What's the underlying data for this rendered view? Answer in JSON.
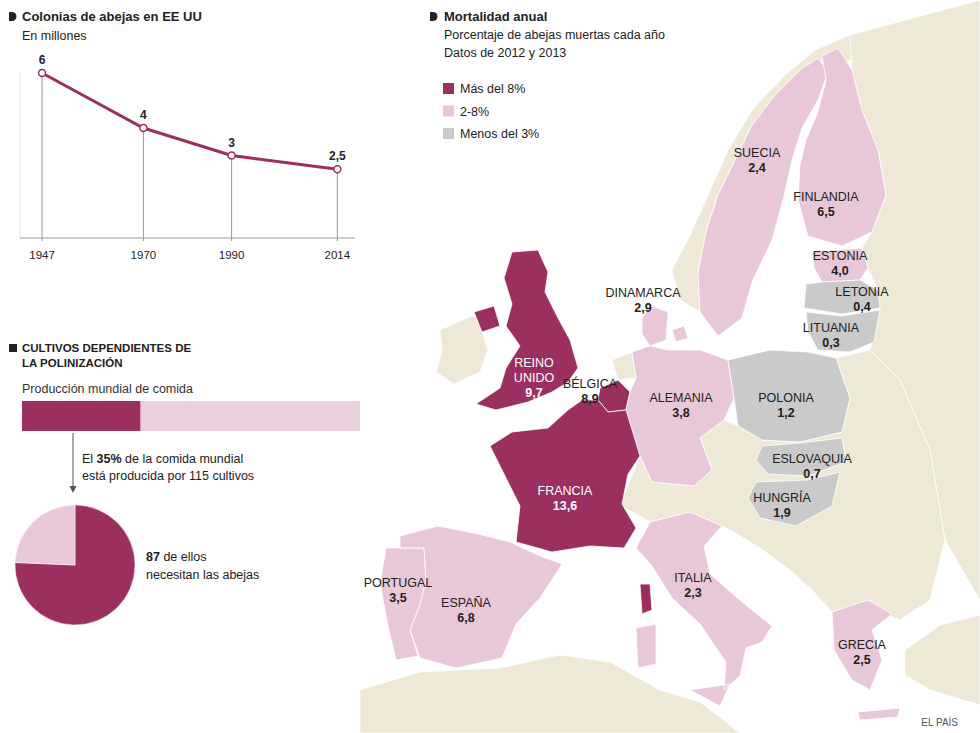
{
  "source": "EL PAÍS",
  "chart_data": [
    {
      "type": "line",
      "title": "Colonias de abejas en EE UU",
      "subtitle": "En millones",
      "x": [
        1947,
        1970,
        1990,
        2014
      ],
      "values": [
        6,
        4,
        3,
        2.5
      ],
      "value_labels": [
        "6",
        "4",
        "3",
        "2,5"
      ],
      "color": "#9b2f5f",
      "marker": "circle",
      "line_style": "solid",
      "xlim": [
        1942,
        2018
      ],
      "xticks": [
        1947,
        1970,
        1990,
        2014
      ],
      "ylim": [
        0,
        6
      ],
      "yticks": [],
      "grid": false,
      "data_labels": true,
      "tick_labels": "x"
    },
    {
      "type": "bar",
      "orientation": "horizontal",
      "title": "CULTIVOS DEPENDIENTES DE LA POLINIZACIÓN",
      "subtitle": "Producción mundial de comida",
      "values": [
        35
      ],
      "value_labels": [
        "35%"
      ],
      "color": "#9b2f5f",
      "xlim": [
        0,
        100
      ],
      "xticks": [],
      "data_labels": true,
      "tick_labels": false,
      "annotation": [
        "El 35% de la comida mundial",
        "está producida por 115 cultivos"
      ]
    },
    {
      "type": "pie",
      "values": [
        87,
        28
      ],
      "colors": [
        "#9b2f5f",
        "#e8c8d8"
      ],
      "data_labels": false,
      "annotation": [
        "87 de ellos",
        "necesitan las abejas"
      ]
    },
    {
      "type": "map",
      "title": "Mortalidad anual",
      "subtitle": "Porcentaje de abejas muertas cada año",
      "note": "Datos de 2012 y 2013",
      "legend": "top-left",
      "classes": [
        {
          "name": "Más del 8%",
          "color": "#9b2f5f"
        },
        {
          "name": "2-8%",
          "color": "#e8c8d8"
        },
        {
          "name": "Menos del 3%",
          "color": "#cacaca"
        }
      ],
      "categories": [
        "SUECIA",
        "FINLANDIA",
        "ESTONIA",
        "LETONIA",
        "LITUANIA",
        "DINAMARCA",
        "REINO UNIDO",
        "BÉLGICA",
        "ALEMANIA",
        "POLONIA",
        "ESLOVAQUIA",
        "HUNGRÍA",
        "FRANCIA",
        "PORTUGAL",
        "ESPAÑA",
        "ITALIA",
        "GRECIA"
      ],
      "values": [
        2.4,
        6.5,
        4.0,
        0.4,
        0.3,
        2.9,
        9.7,
        8.9,
        3.8,
        1.2,
        0.7,
        1.9,
        13.6,
        3.5,
        6.8,
        2.3,
        2.5
      ],
      "value_labels": [
        "2,4",
        "6,5",
        "4,0",
        "0,4",
        "0,3",
        "2,9",
        "9,7",
        "8,9",
        "3,8",
        "1,2",
        "0,7",
        "1,9",
        "13,6",
        "3,5",
        "6,8",
        "2,3",
        "2,5"
      ],
      "colors": [
        "#e8c8d8",
        "#e8c8d8",
        "#e8c8d8",
        "#cacaca",
        "#cacaca",
        "#e8c8d8",
        "#9b2f5f",
        "#9b2f5f",
        "#e8c8d8",
        "#cacaca",
        "#cacaca",
        "#cacaca",
        "#9b2f5f",
        "#e8c8d8",
        "#e8c8d8",
        "#e8c8d8",
        "#e8c8d8"
      ],
      "data_labels": true
    }
  ]
}
